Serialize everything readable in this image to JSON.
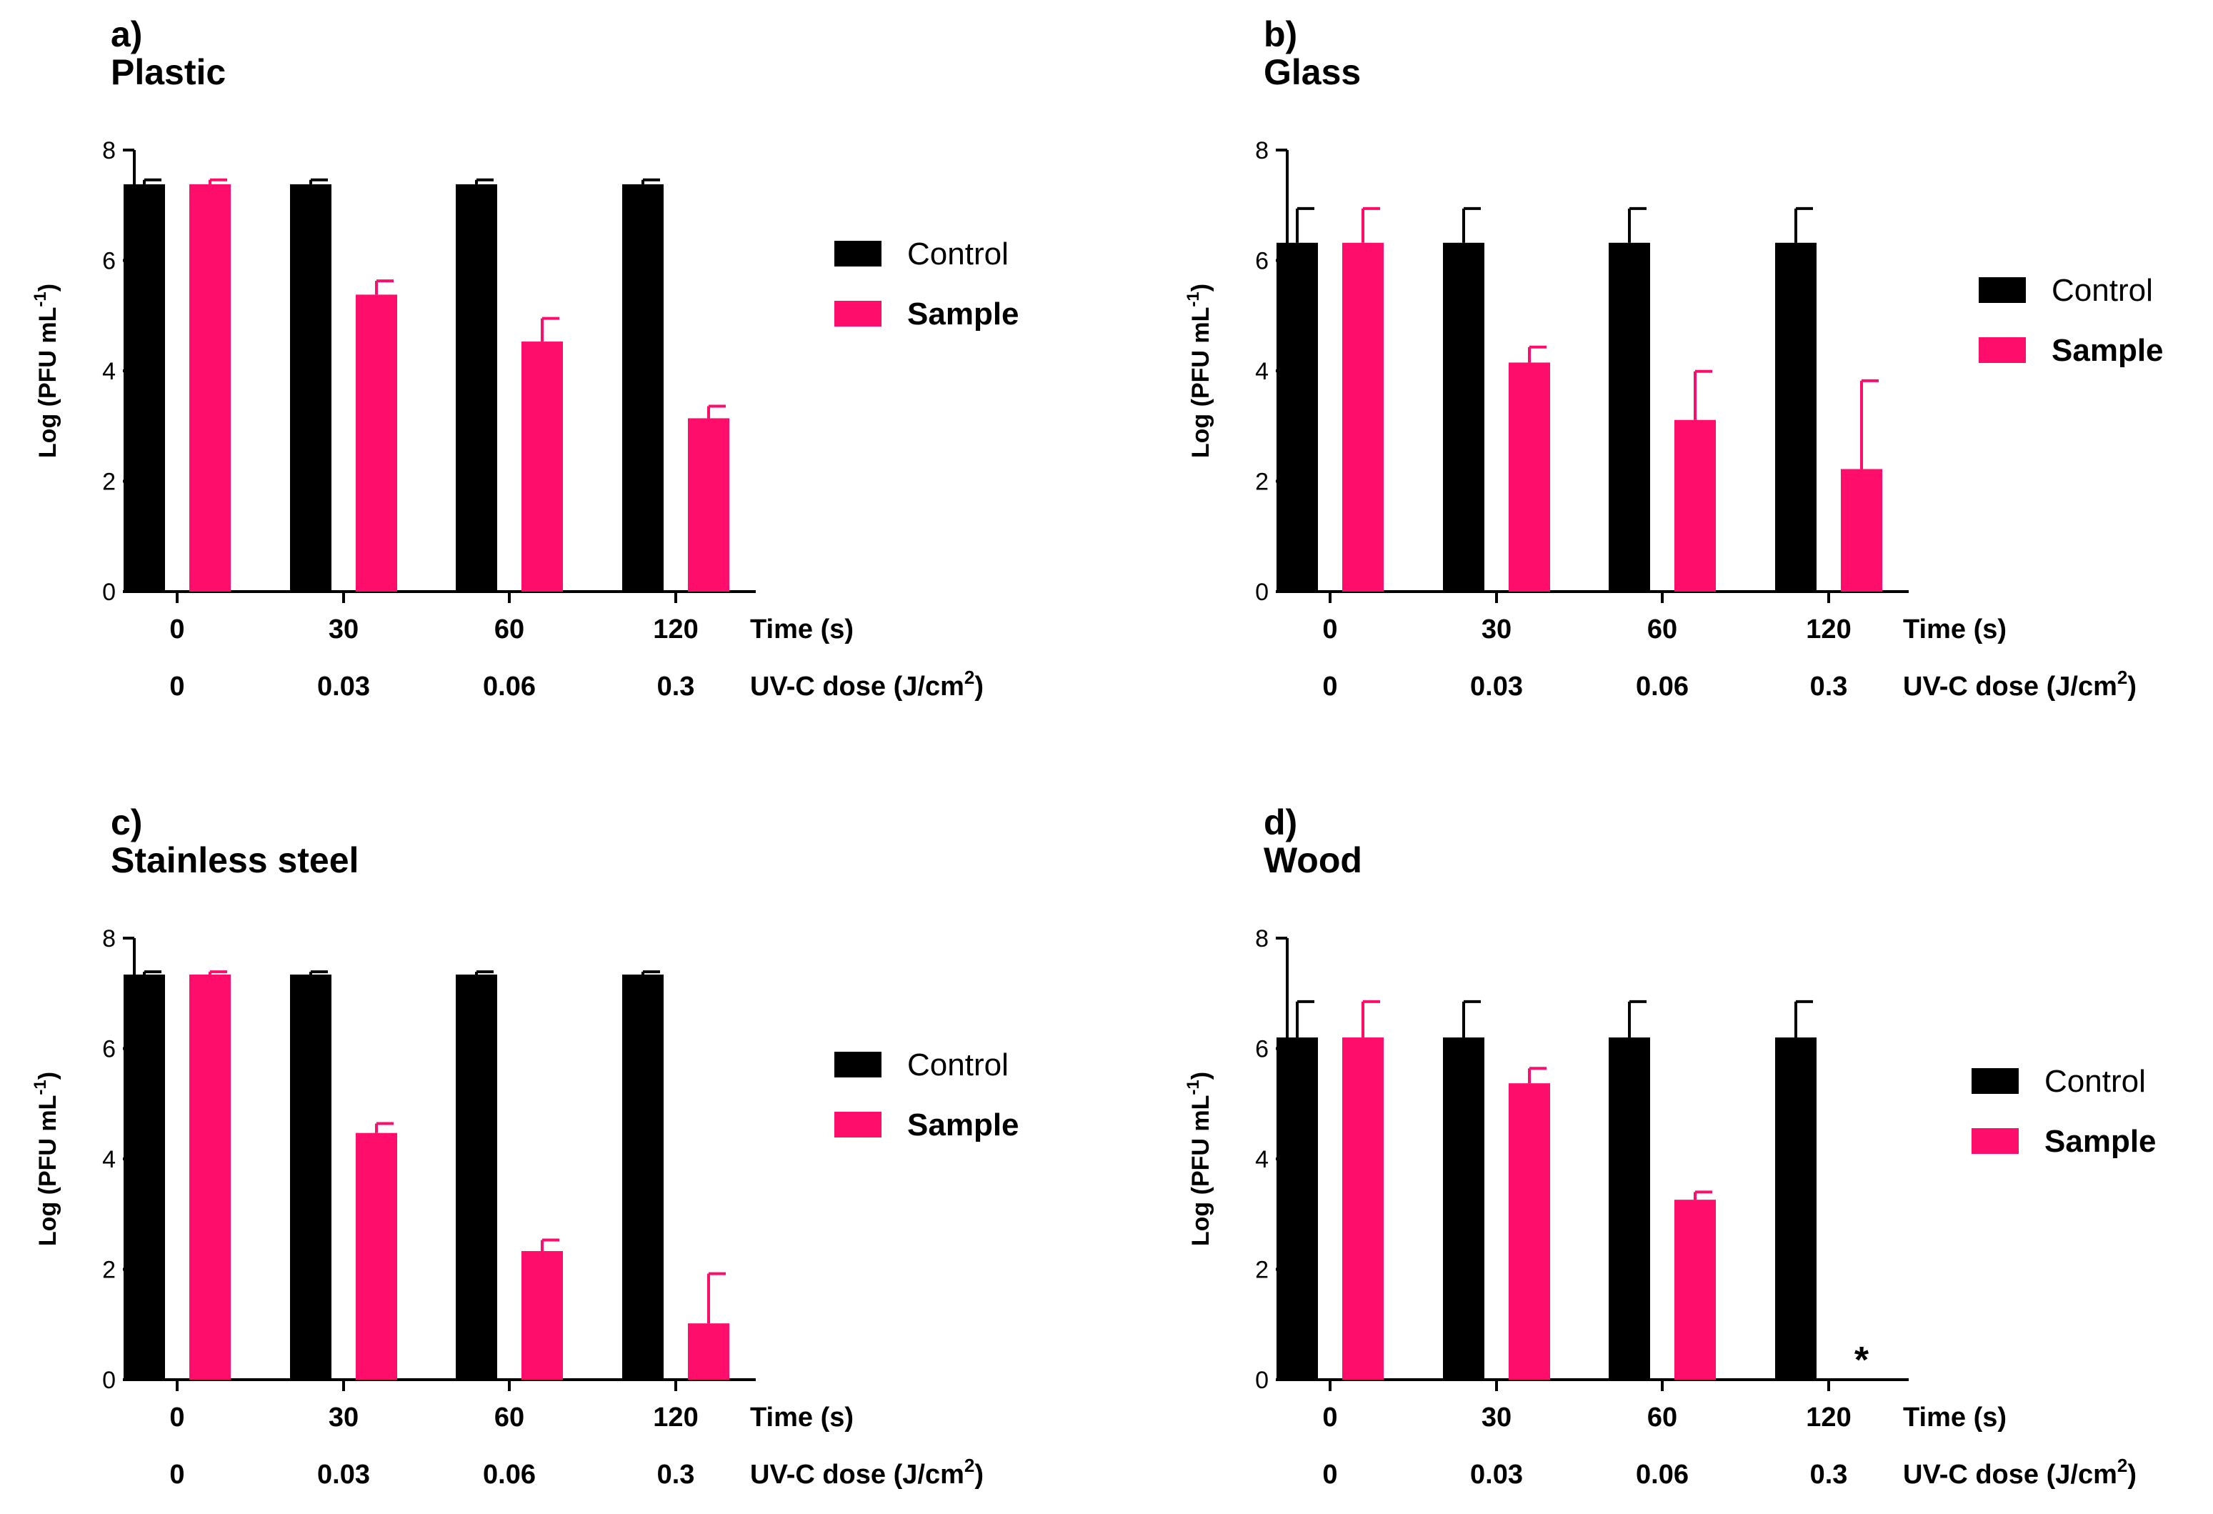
{
  "colors": {
    "control": "#000000",
    "sample": "#ff0d6a"
  },
  "chart_data": [
    {
      "type": "bar",
      "panel": "a)",
      "title": "Plastic",
      "ylabel": "Log (PFU mL",
      "ylabel_sup": "-1",
      "ylabel_close": ")",
      "ylim": [
        0,
        8
      ],
      "yticks": [
        0,
        2,
        4,
        6,
        8
      ],
      "categories": [
        "0",
        "30",
        "60",
        "120"
      ],
      "row_label_1": "Time (s)",
      "categories2": [
        "0",
        "0.03",
        "0.06",
        "0.3"
      ],
      "row_label_2": "UV-C dose (J/cm",
      "row_label_2_sup": "2",
      "row_label_2_close": ")",
      "legend_position": "right",
      "series": [
        {
          "name": "Control",
          "values": [
            7.38,
            7.38,
            7.38,
            7.38
          ],
          "errors": [
            0.08,
            0.08,
            0.08,
            0.08
          ]
        },
        {
          "name": "Sample",
          "values": [
            7.38,
            5.38,
            4.53,
            3.14
          ],
          "errors": [
            0.08,
            0.25,
            0.42,
            0.22
          ]
        }
      ],
      "annotations": []
    },
    {
      "type": "bar",
      "panel": "b)",
      "title": "Glass",
      "ylabel": "Log (PFU mL",
      "ylabel_sup": "-1",
      "ylabel_close": ")",
      "ylim": [
        0,
        8
      ],
      "yticks": [
        0,
        2,
        4,
        6,
        8
      ],
      "categories": [
        "0",
        "30",
        "60",
        "120"
      ],
      "row_label_1": "Time (s)",
      "categories2": [
        "0",
        "0.03",
        "0.06",
        "0.3"
      ],
      "row_label_2": "UV-C dose (J/cm",
      "row_label_2_sup": "2",
      "row_label_2_close": ")",
      "legend_position": "right",
      "series": [
        {
          "name": "Control",
          "values": [
            6.32,
            6.32,
            6.32,
            6.32
          ],
          "errors": [
            0.62,
            0.62,
            0.62,
            0.62
          ]
        },
        {
          "name": "Sample",
          "values": [
            6.32,
            4.15,
            3.11,
            2.22
          ],
          "errors": [
            0.62,
            0.28,
            0.88,
            1.6
          ]
        }
      ],
      "annotations": []
    },
    {
      "type": "bar",
      "panel": "c)",
      "title": "Stainless steel",
      "ylabel": "Log (PFU mL",
      "ylabel_sup": "-1",
      "ylabel_close": ")",
      "ylim": [
        0,
        8
      ],
      "yticks": [
        0,
        2,
        4,
        6,
        8
      ],
      "categories": [
        "0",
        "30",
        "60",
        "120"
      ],
      "row_label_1": "Time (s)",
      "categories2": [
        "0",
        "0.03",
        "0.06",
        "0.3"
      ],
      "row_label_2": "UV-C dose (J/cm",
      "row_label_2_sup": "2",
      "row_label_2_close": ")",
      "legend_position": "right",
      "series": [
        {
          "name": "Control",
          "values": [
            7.34,
            7.34,
            7.34,
            7.34
          ],
          "errors": [
            0.05,
            0.05,
            0.05,
            0.05
          ]
        },
        {
          "name": "Sample",
          "values": [
            7.34,
            4.47,
            2.33,
            1.02
          ],
          "errors": [
            0.05,
            0.17,
            0.2,
            0.9
          ]
        }
      ],
      "annotations": []
    },
    {
      "type": "bar",
      "panel": "d)",
      "title": "Wood",
      "ylabel": "Log (PFU mL",
      "ylabel_sup": "-1",
      "ylabel_close": ")",
      "ylim": [
        0,
        8
      ],
      "yticks": [
        0,
        2,
        4,
        6,
        8
      ],
      "categories": [
        "0",
        "30",
        "60",
        "120"
      ],
      "row_label_1": "Time (s)",
      "categories2": [
        "0",
        "0.03",
        "0.06",
        "0.3"
      ],
      "row_label_2": "UV-C dose (J/cm",
      "row_label_2_sup": "2",
      "row_label_2_close": ")",
      "legend_position": "right",
      "series": [
        {
          "name": "Control",
          "values": [
            6.2,
            6.2,
            6.2,
            6.2
          ],
          "errors": [
            0.65,
            0.65,
            0.65,
            0.65
          ]
        },
        {
          "name": "Sample",
          "values": [
            6.2,
            5.37,
            3.26,
            0
          ],
          "errors": [
            0.65,
            0.27,
            0.14,
            0
          ]
        }
      ],
      "annotations": [
        {
          "category_index": 3,
          "series_index": 1,
          "text": "*"
        }
      ]
    }
  ]
}
